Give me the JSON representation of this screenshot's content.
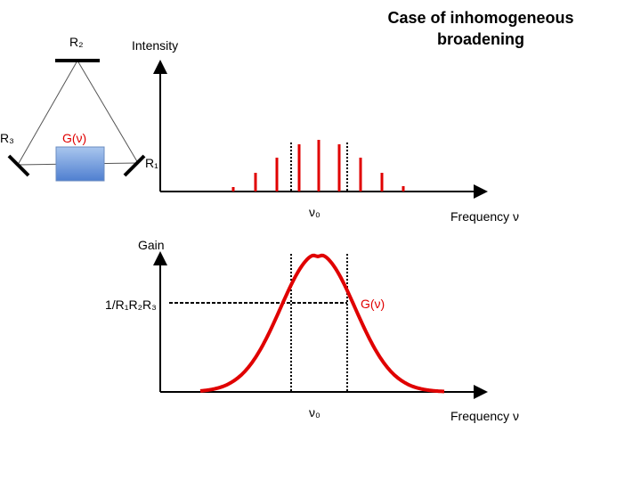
{
  "title": [
    "Case of inhomogeneous",
    "broadening"
  ],
  "laser": {
    "r2": "R₂",
    "r3": "R₃",
    "r1": "R₁",
    "gain_medium": "G(ν)"
  },
  "spectrum": {
    "y_label": "Intensity",
    "center": "ν₀",
    "x_label": "Frequency ν"
  },
  "gain_plot": {
    "y_label": "Gain",
    "threshold": "1/R₁R₂R₃",
    "curve": "G(ν)",
    "center": "ν₀",
    "x_label": "Frequency ν"
  }
}
